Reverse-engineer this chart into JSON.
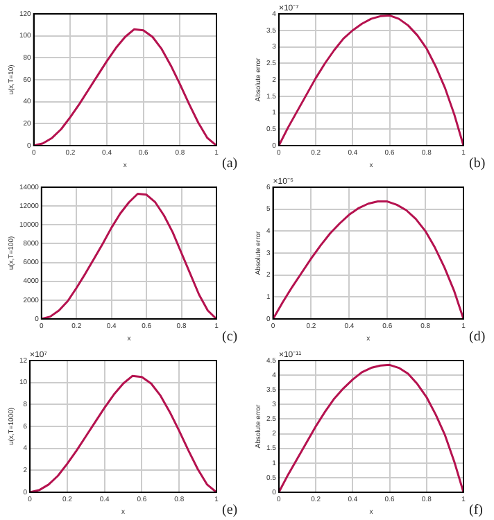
{
  "chart_data": [
    {
      "type": "line",
      "xlabel": "x",
      "ylabel": "u(x,T=10)",
      "annotations": [
        "(a)"
      ],
      "x": [
        0,
        0.05,
        0.1,
        0.15,
        0.2,
        0.25,
        0.3,
        0.35,
        0.4,
        0.45,
        0.5,
        0.55,
        0.6,
        0.65,
        0.7,
        0.75,
        0.8,
        0.85,
        0.9,
        0.95,
        1
      ],
      "series": [
        {
          "color": "#b5124f",
          "values": [
            0,
            2,
            7,
            15,
            26,
            38,
            51,
            64,
            77,
            89,
            99,
            106,
            105,
            99,
            88,
            73,
            56,
            38,
            21,
            7,
            0
          ]
        }
      ],
      "xlim": [
        0,
        1
      ],
      "xticks": [
        0,
        0.2,
        0.4,
        0.6,
        0.8,
        1
      ],
      "ylim": [
        0,
        120
      ],
      "yticks": [
        0,
        20,
        40,
        60,
        80,
        100,
        120
      ],
      "grid": true
    },
    {
      "type": "line",
      "xlabel": "x",
      "ylabel": "Absolute error",
      "annotations": [
        "×10⁻⁷",
        "(b)"
      ],
      "x": [
        0,
        0.05,
        0.1,
        0.15,
        0.2,
        0.25,
        0.3,
        0.35,
        0.4,
        0.45,
        0.5,
        0.55,
        0.6,
        0.65,
        0.7,
        0.75,
        0.8,
        0.85,
        0.9,
        0.95,
        1
      ],
      "series": [
        {
          "color": "#b5124f",
          "values": [
            0,
            0.55,
            1.05,
            1.55,
            2.05,
            2.5,
            2.9,
            3.25,
            3.5,
            3.7,
            3.85,
            3.93,
            3.95,
            3.85,
            3.65,
            3.35,
            2.95,
            2.4,
            1.75,
            0.95,
            0
          ]
        }
      ],
      "xlim": [
        0,
        1
      ],
      "xticks": [
        0,
        0.2,
        0.4,
        0.6,
        0.8,
        1
      ],
      "ylim": [
        0,
        4
      ],
      "yticks": [
        0,
        0.5,
        1,
        1.5,
        2,
        2.5,
        3,
        3.5,
        4
      ],
      "grid": true
    },
    {
      "type": "line",
      "xlabel": "x",
      "ylabel": "u(x,T=100)",
      "annotations": [
        "(c)"
      ],
      "x": [
        0,
        0.05,
        0.1,
        0.15,
        0.2,
        0.25,
        0.3,
        0.35,
        0.4,
        0.45,
        0.5,
        0.55,
        0.6,
        0.65,
        0.7,
        0.75,
        0.8,
        0.85,
        0.9,
        0.95,
        1
      ],
      "series": [
        {
          "color": "#b5124f",
          "values": [
            0,
            250,
            900,
            1900,
            3300,
            4800,
            6400,
            8000,
            9700,
            11200,
            12400,
            13300,
            13200,
            12400,
            11000,
            9200,
            7000,
            4800,
            2600,
            900,
            0
          ]
        }
      ],
      "xlim": [
        0,
        1
      ],
      "xticks": [
        0,
        0.2,
        0.4,
        0.6,
        0.8,
        1
      ],
      "ylim": [
        0,
        14000
      ],
      "yticks": [
        0,
        2000,
        4000,
        6000,
        8000,
        10000,
        12000,
        14000
      ],
      "grid": true
    },
    {
      "type": "line",
      "xlabel": "x",
      "ylabel": "Absolute error",
      "annotations": [
        "×10⁻⁵",
        "(d)"
      ],
      "x": [
        0,
        0.05,
        0.1,
        0.15,
        0.2,
        0.25,
        0.3,
        0.35,
        0.4,
        0.45,
        0.5,
        0.55,
        0.6,
        0.65,
        0.7,
        0.75,
        0.8,
        0.85,
        0.9,
        0.95,
        1
      ],
      "series": [
        {
          "color": "#b5124f",
          "values": [
            0,
            0.75,
            1.45,
            2.1,
            2.75,
            3.35,
            3.9,
            4.35,
            4.75,
            5.05,
            5.25,
            5.35,
            5.35,
            5.2,
            4.95,
            4.55,
            4,
            3.25,
            2.35,
            1.3,
            0
          ]
        }
      ],
      "xlim": [
        0,
        1
      ],
      "xticks": [
        0,
        0.2,
        0.4,
        0.6,
        0.8,
        1
      ],
      "ylim": [
        0,
        6
      ],
      "yticks": [
        0,
        1,
        2,
        3,
        4,
        5,
        6
      ],
      "grid": true
    },
    {
      "type": "line",
      "xlabel": "x",
      "ylabel": "u(x,T=1000)",
      "annotations": [
        "×10⁷",
        "(e)"
      ],
      "x": [
        0,
        0.05,
        0.1,
        0.15,
        0.2,
        0.25,
        0.3,
        0.35,
        0.4,
        0.45,
        0.5,
        0.55,
        0.6,
        0.65,
        0.7,
        0.75,
        0.8,
        0.85,
        0.9,
        0.95,
        1
      ],
      "series": [
        {
          "color": "#b5124f",
          "values": [
            0,
            0.2,
            0.7,
            1.5,
            2.6,
            3.8,
            5.1,
            6.4,
            7.7,
            8.9,
            9.9,
            10.6,
            10.5,
            9.9,
            8.8,
            7.3,
            5.6,
            3.8,
            2.1,
            0.7,
            0
          ]
        }
      ],
      "xlim": [
        0,
        1
      ],
      "xticks": [
        0,
        0.2,
        0.4,
        0.6,
        0.8,
        1
      ],
      "ylim": [
        0,
        12
      ],
      "yticks": [
        0,
        2,
        4,
        6,
        8,
        10,
        12
      ],
      "grid": true
    },
    {
      "type": "line",
      "xlabel": "x",
      "ylabel": "Absolute error",
      "annotations": [
        "×10⁻¹¹",
        "(f)"
      ],
      "x": [
        0,
        0.05,
        0.1,
        0.15,
        0.2,
        0.25,
        0.3,
        0.35,
        0.4,
        0.45,
        0.5,
        0.55,
        0.6,
        0.65,
        0.7,
        0.75,
        0.8,
        0.85,
        0.9,
        0.95,
        1
      ],
      "series": [
        {
          "color": "#b5124f",
          "values": [
            0,
            0.6,
            1.15,
            1.7,
            2.25,
            2.75,
            3.2,
            3.55,
            3.85,
            4.1,
            4.25,
            4.33,
            4.35,
            4.25,
            4.05,
            3.7,
            3.25,
            2.65,
            1.95,
            1.05,
            0
          ]
        }
      ],
      "xlim": [
        0,
        1
      ],
      "xticks": [
        0,
        0.2,
        0.4,
        0.6,
        0.8,
        1
      ],
      "ylim": [
        0,
        4.5
      ],
      "yticks": [
        0,
        0.5,
        1,
        1.5,
        2,
        2.5,
        3,
        3.5,
        4,
        4.5
      ],
      "grid": true
    }
  ]
}
